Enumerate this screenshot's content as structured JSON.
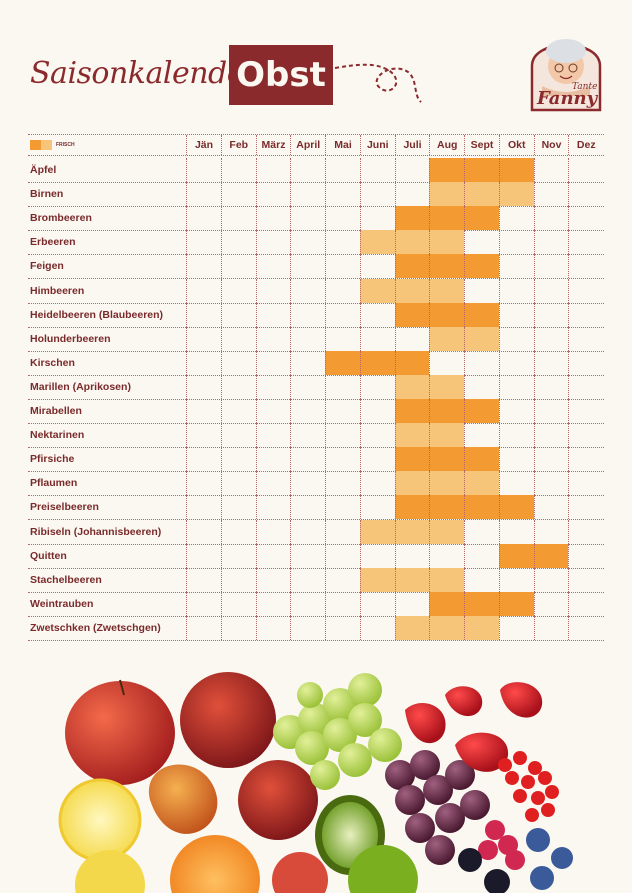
{
  "header": {
    "script_title": "Saisonkalender",
    "title": "Obst",
    "logo_line1": "Tante",
    "logo_line2": "Fanny"
  },
  "legend": {
    "label": "FRISCH"
  },
  "months": [
    "Jän",
    "Feb",
    "März",
    "April",
    "Mai",
    "Juni",
    "Juli",
    "Aug",
    "Sept",
    "Okt",
    "Nov",
    "Dez"
  ],
  "colors": {
    "fresh": "#f39a33",
    "stored": "#f6c57a",
    "brand": "#8b2a2c"
  },
  "fruits": [
    {
      "name": "Äpfel",
      "fresh": [
        8,
        9,
        10
      ],
      "stored": []
    },
    {
      "name": "Birnen",
      "fresh": [],
      "stored": [
        8,
        9,
        10
      ]
    },
    {
      "name": "Brombeeren",
      "fresh": [
        7,
        8,
        9
      ],
      "stored": []
    },
    {
      "name": "Erbeeren",
      "fresh": [],
      "stored": [
        6,
        7,
        8
      ]
    },
    {
      "name": "Feigen",
      "fresh": [
        7,
        8,
        9
      ],
      "stored": []
    },
    {
      "name": "Himbeeren",
      "fresh": [],
      "stored": [
        6,
        7,
        8
      ]
    },
    {
      "name": "Heidelbeeren (Blaubeeren)",
      "fresh": [
        7,
        8,
        9
      ],
      "stored": []
    },
    {
      "name": "Holunderbeeren",
      "fresh": [],
      "stored": [
        8,
        9
      ]
    },
    {
      "name": "Kirschen",
      "fresh": [
        5,
        6,
        7
      ],
      "stored": []
    },
    {
      "name": "Marillen (Aprikosen)",
      "fresh": [],
      "stored": [
        7,
        8
      ]
    },
    {
      "name": "Mirabellen",
      "fresh": [
        7,
        8,
        9
      ],
      "stored": []
    },
    {
      "name": "Nektarinen",
      "fresh": [],
      "stored": [
        7,
        8
      ]
    },
    {
      "name": "Pfirsiche",
      "fresh": [
        7,
        8,
        9
      ],
      "stored": []
    },
    {
      "name": "Pflaumen",
      "fresh": [],
      "stored": [
        7,
        8,
        9
      ]
    },
    {
      "name": "Preiselbeeren",
      "fresh": [
        7,
        8,
        9,
        10
      ],
      "stored": []
    },
    {
      "name": "Ribiseln (Johannisbeeren)",
      "fresh": [],
      "stored": [
        6,
        7,
        8
      ]
    },
    {
      "name": "Quitten",
      "fresh": [
        10,
        11
      ],
      "stored": []
    },
    {
      "name": "Stachelbeeren",
      "fresh": [],
      "stored": [
        6,
        7,
        8
      ]
    },
    {
      "name": "Weintrauben",
      "fresh": [
        8,
        9,
        10
      ],
      "stored": []
    },
    {
      "name": "Zwetschken (Zwetschgen)",
      "fresh": [],
      "stored": [
        7,
        8,
        9
      ]
    }
  ]
}
